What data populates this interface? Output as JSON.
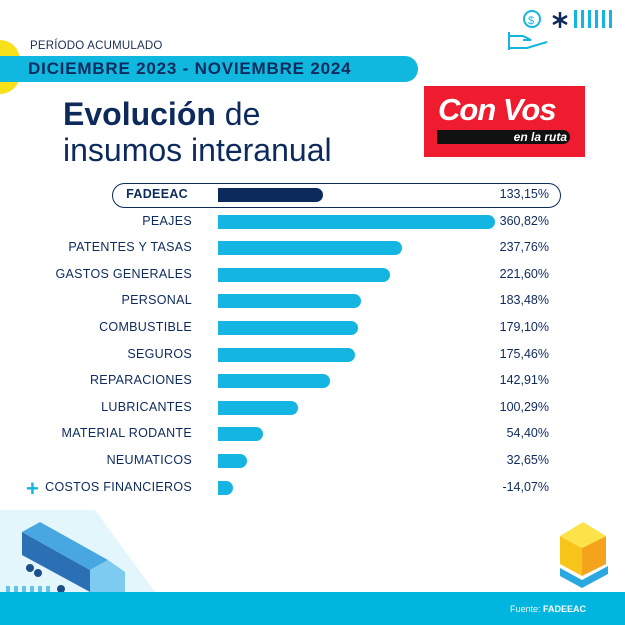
{
  "header": {
    "period_label": "PERÍODO ACUMULADO",
    "period": "DICIEMBRE 2023 - NOVIEMBRE 2024",
    "title_bold": "Evolución",
    "title_rest": " de",
    "title_line2": "insumos interanual"
  },
  "logo": {
    "main": "Con Vos",
    "sub": "en la ruta"
  },
  "footer": {
    "source_label": "Fuente: ",
    "source": "FADEEAC"
  },
  "colors": {
    "navy": "#0d2a5c",
    "cyan": "#14b5e0",
    "red": "#ee1c2e",
    "yellow": "#f7e11a"
  },
  "chart_data": {
    "type": "bar",
    "orientation": "horizontal",
    "title": "Evolución de insumos interanual",
    "unit": "%",
    "categories": [
      "FADEEAC",
      "PEAJES",
      "PATENTES Y TASAS",
      "GASTOS GENERALES",
      "PERSONAL",
      "COMBUSTIBLE",
      "SEGUROS",
      "REPARACIONES",
      "LUBRICANTES",
      "MATERIAL RODANTE",
      "NEUMATICOS",
      "COSTOS FINANCIEROS"
    ],
    "values": [
      133.15,
      360.82,
      237.76,
      221.6,
      183.48,
      179.1,
      175.46,
      142.91,
      100.29,
      54.4,
      32.65,
      -14.07
    ],
    "labels": [
      "133,15%",
      "360,82%",
      "237,76%",
      "221,60%",
      "183,48%",
      "179,10%",
      "175,46%",
      "142,91%",
      "100,29%",
      "54,40%",
      "32,65%",
      "-14,07%"
    ],
    "highlight": "FADEEAC"
  }
}
